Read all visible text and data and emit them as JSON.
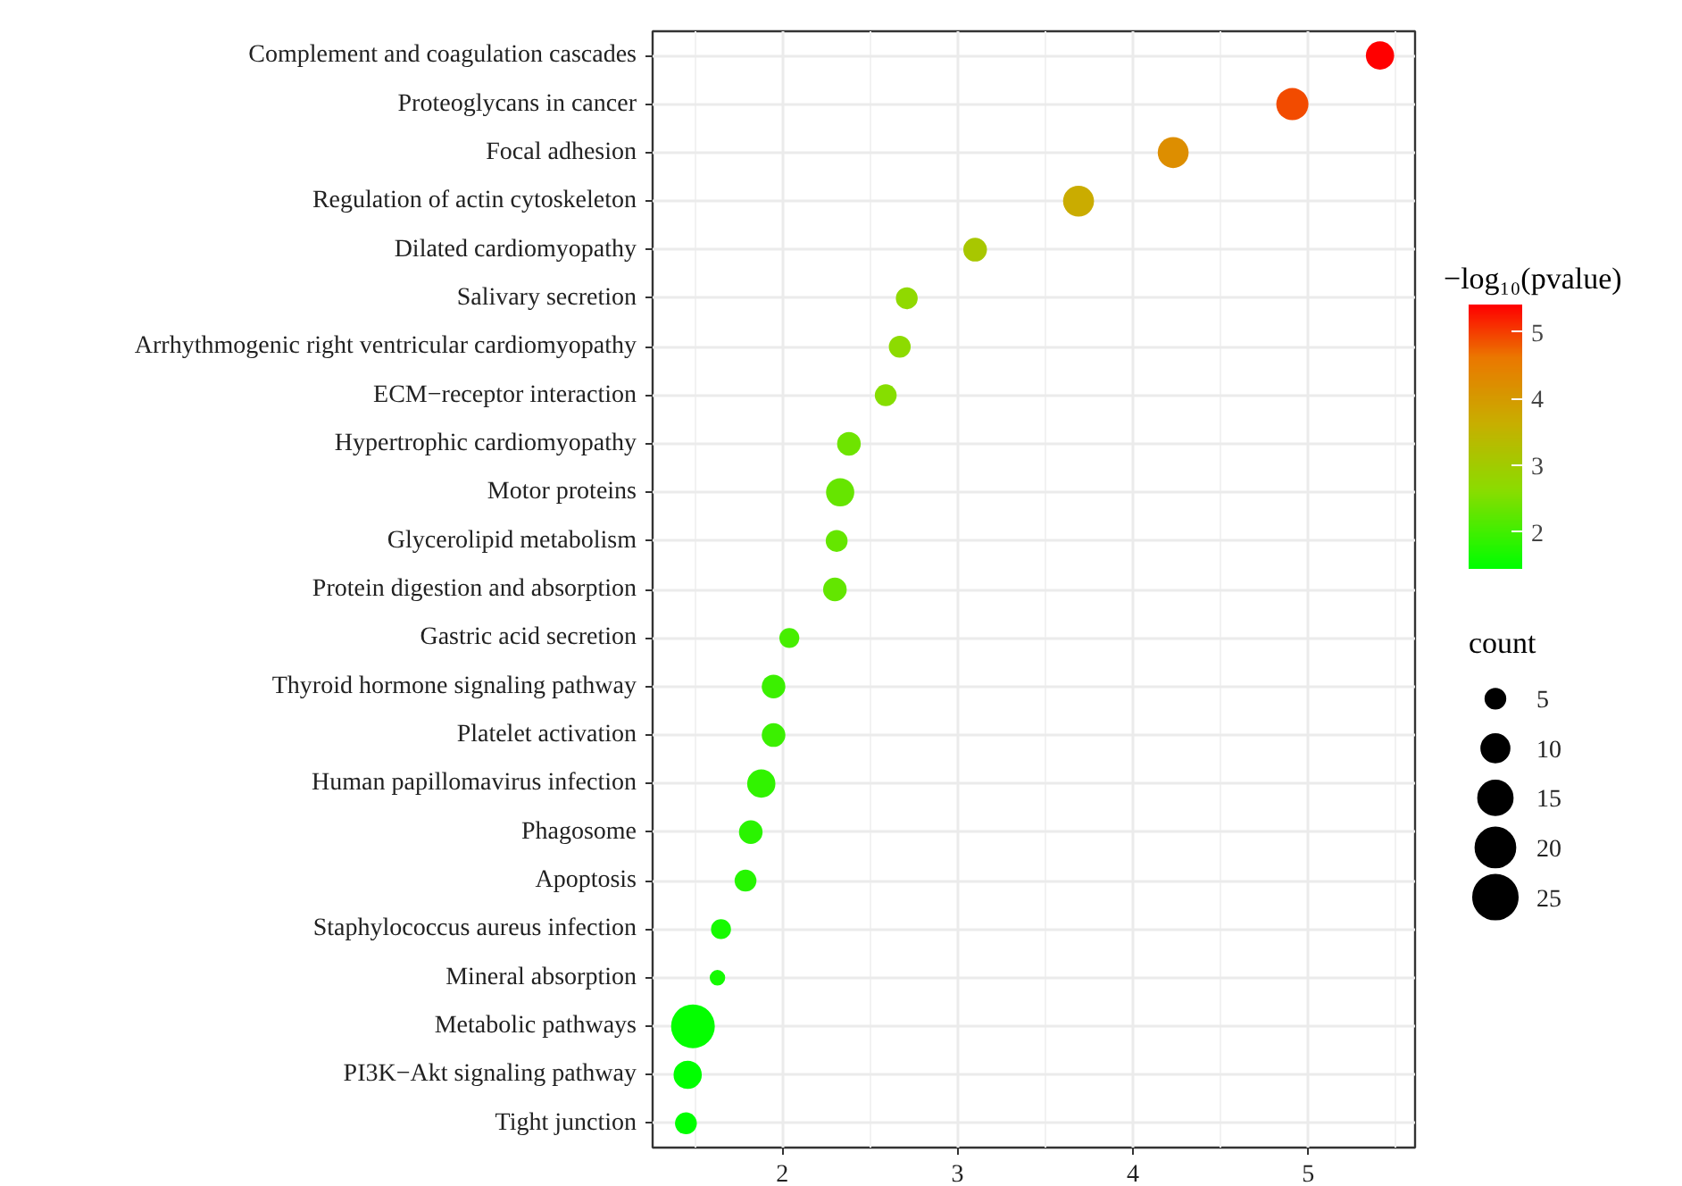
{
  "chart_data": {
    "type": "bubble",
    "orientation": "horizontal",
    "categories": [
      "Complement and coagulation cascades",
      "Proteoglycans in cancer",
      "Focal adhesion",
      "Regulation of actin cytoskeleton",
      "Dilated cardiomyopathy",
      "Salivary secretion",
      "Arrhythmogenic right ventricular cardiomyopathy",
      "ECM−receptor interaction",
      "Hypertrophic cardiomyopathy",
      "Motor proteins",
      "Glycerolipid metabolism",
      "Protein digestion and absorption",
      "Gastric acid secretion",
      "Thyroid hormone signaling pathway",
      "Platelet activation",
      "Human papillomavirus infection",
      "Phagosome",
      "Apoptosis",
      "Staphylococcus aureus infection",
      "Mineral absorption",
      "Metabolic pathways",
      "PI3K−Akt signaling pathway",
      "Tight junction"
    ],
    "values": [
      5.41,
      4.91,
      4.23,
      3.69,
      3.1,
      2.71,
      2.67,
      2.59,
      2.38,
      2.33,
      2.31,
      2.3,
      2.04,
      1.95,
      1.95,
      1.88,
      1.82,
      1.79,
      1.65,
      1.63,
      1.49,
      1.46,
      1.45
    ],
    "cvalues": [
      5.41,
      4.91,
      4.23,
      3.69,
      3.1,
      2.71,
      2.67,
      2.59,
      2.38,
      2.33,
      2.31,
      2.3,
      2.04,
      1.95,
      1.95,
      1.88,
      1.82,
      1.79,
      1.65,
      1.63,
      1.49,
      1.46,
      1.45
    ],
    "sizes": [
      10,
      13,
      12,
      12,
      7,
      6,
      6,
      6,
      7,
      10,
      6,
      7,
      5,
      7,
      7,
      10,
      7,
      6,
      5,
      3,
      24,
      10,
      6
    ],
    "size_legend": [
      5,
      10,
      15,
      20,
      25
    ],
    "legend_title": "count",
    "clabel": "−log₁₀(pvalue)",
    "clim": [
      1.45,
      5.41
    ],
    "cticks": [
      2,
      3,
      4,
      5
    ],
    "xlim": [
      1.26,
      5.61
    ],
    "xticks": [
      2,
      3,
      4,
      5
    ],
    "grid": true
  }
}
